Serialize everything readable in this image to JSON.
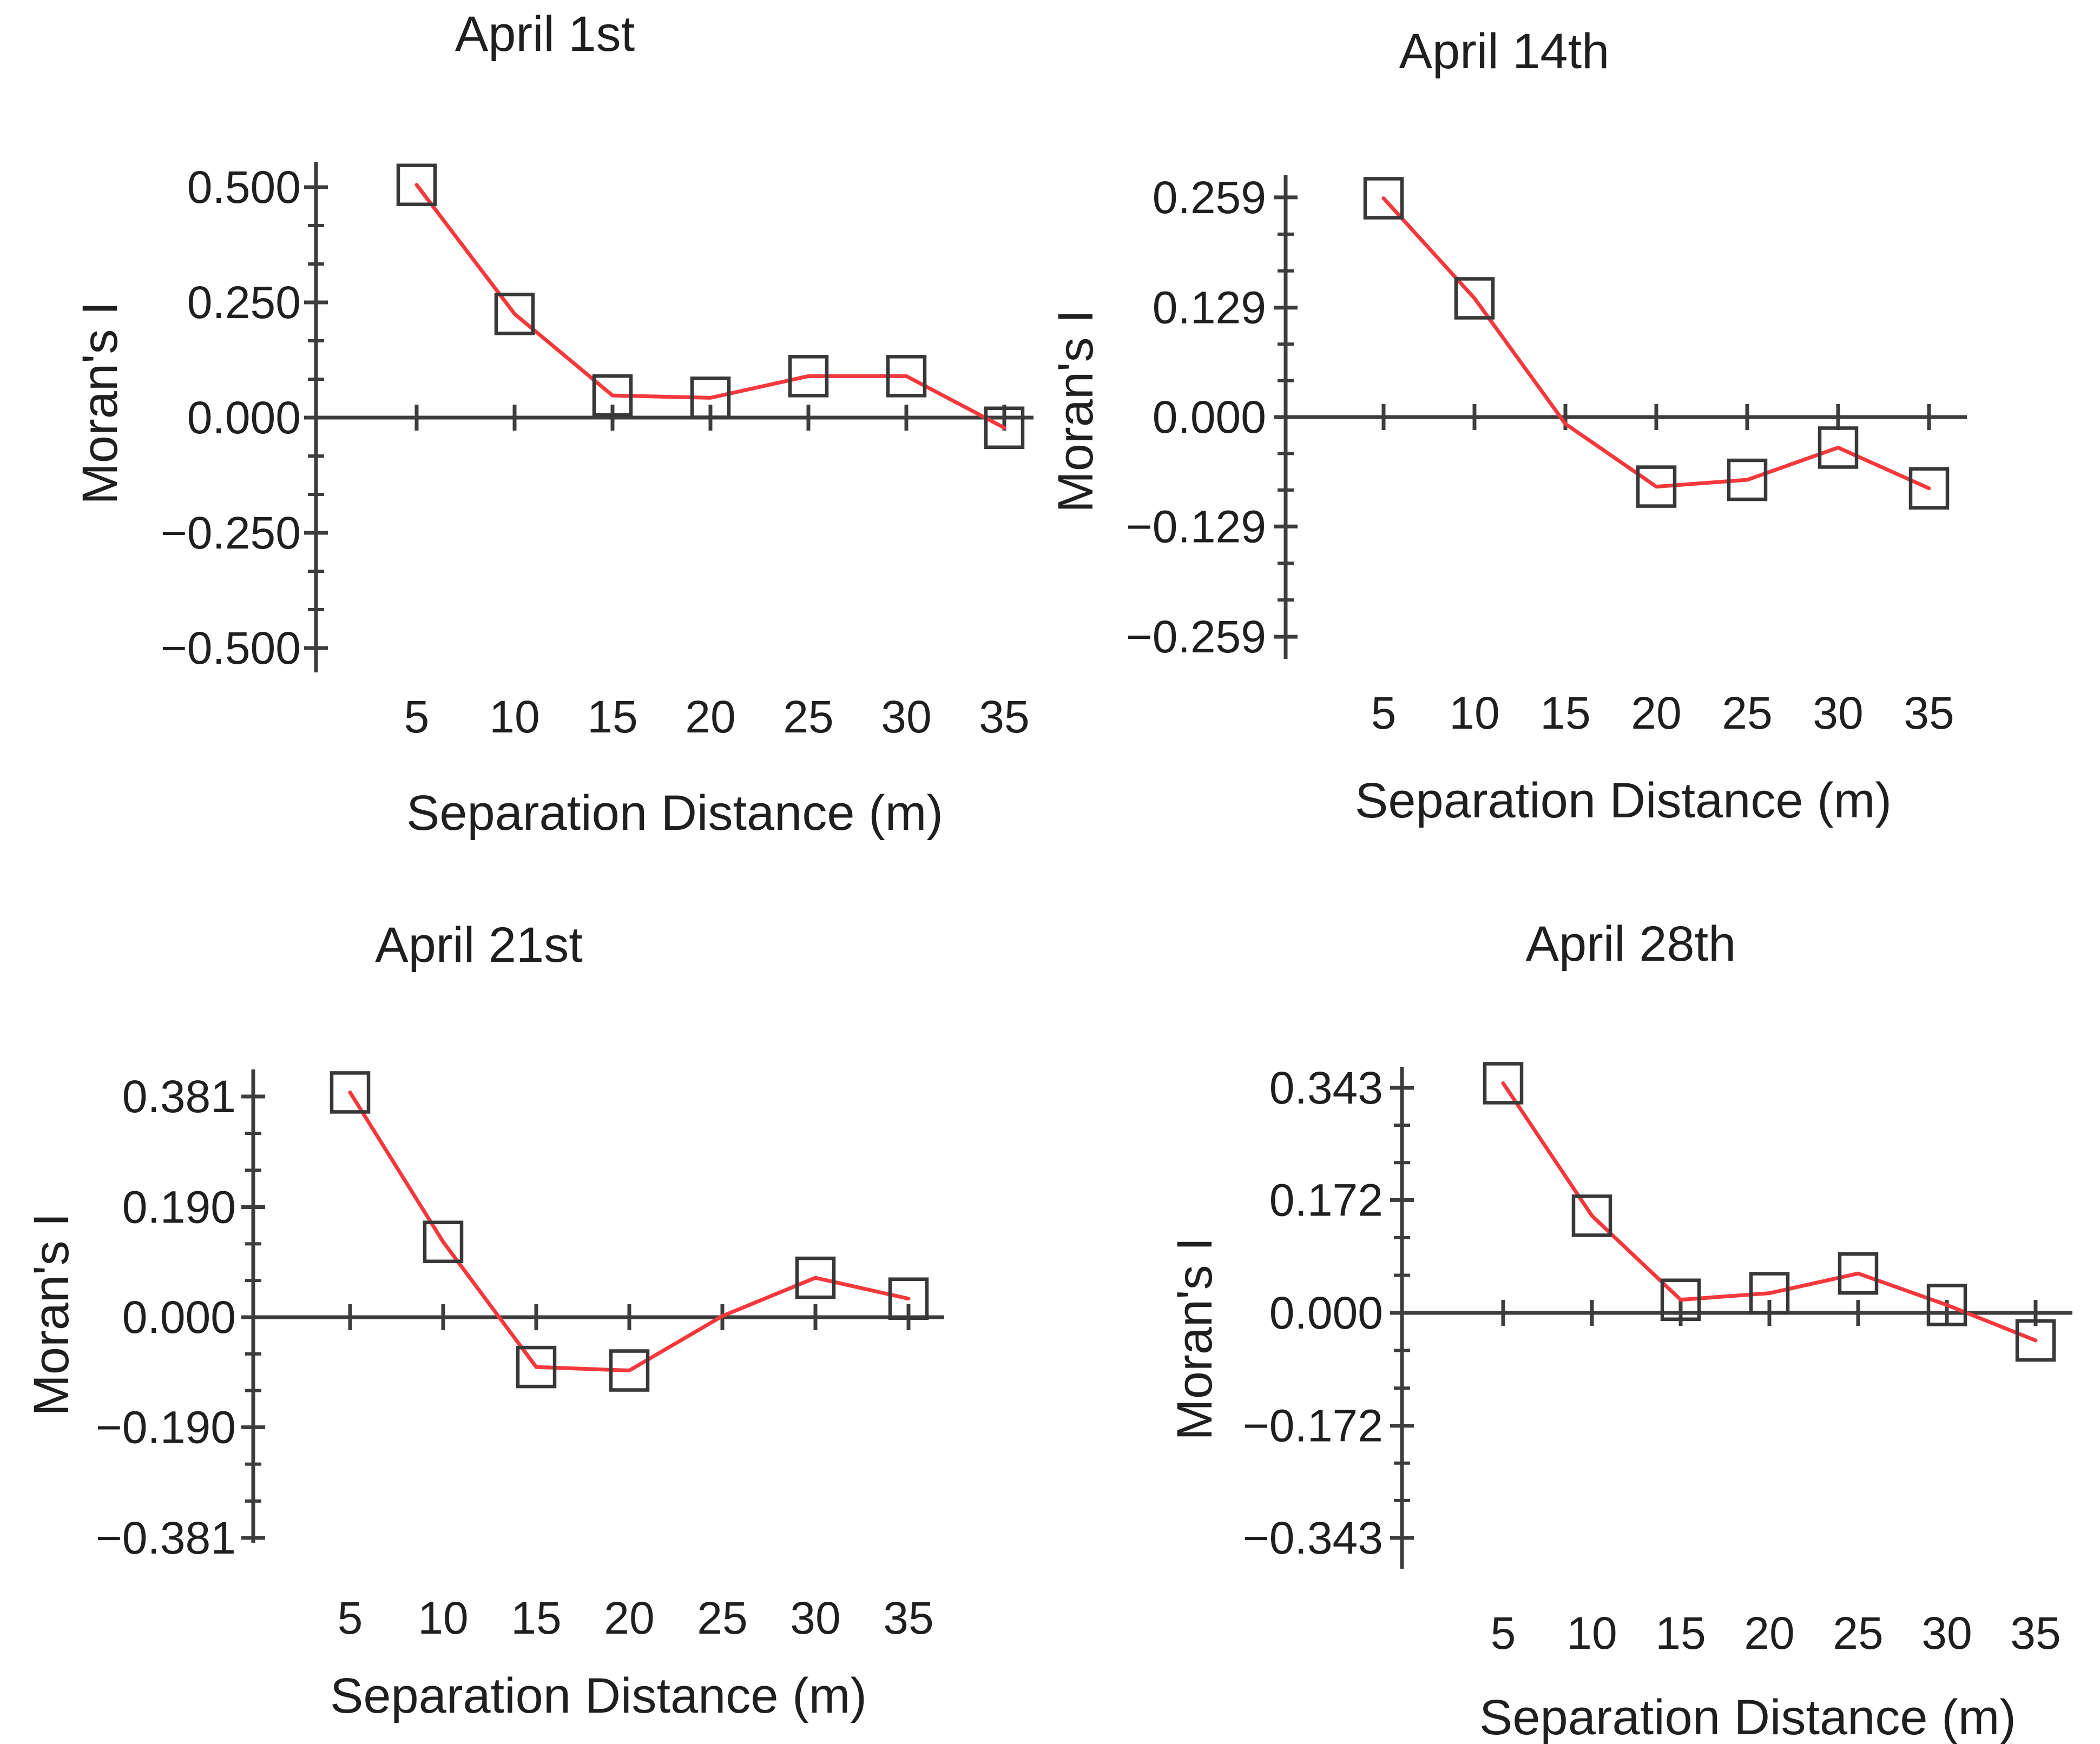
{
  "page": {
    "background": "#ffffff",
    "description_colors": {
      "series_line": "#f4383c",
      "marker_outline": "#383838",
      "axis": "#3d3d3d",
      "text": "#1f1f1f"
    }
  },
  "chart_data": [
    {
      "type": "line",
      "title": "April 1st",
      "xlabel": "Separation Distance (m)",
      "ylabel": "Moran's I",
      "legend_position": "none",
      "grid": false,
      "xlim": [
        0,
        37
      ],
      "ylim": [
        -0.553,
        0.555
      ],
      "x_ticks": [
        {
          "label": "5",
          "value": 5
        },
        {
          "label": "10",
          "value": 10
        },
        {
          "label": "15",
          "value": 15
        },
        {
          "label": "20",
          "value": 20
        },
        {
          "label": "25",
          "value": 25
        },
        {
          "label": "30",
          "value": 30
        },
        {
          "label": "35",
          "value": 35
        }
      ],
      "y_ticks": [
        {
          "label": "0.500",
          "value": 0.5
        },
        {
          "label": "0.250",
          "value": 0.25
        },
        {
          "label": "0.000",
          "value": 0.0
        },
        {
          "label": "−0.250",
          "value": -0.25
        },
        {
          "label": "−0.500",
          "value": -0.5
        }
      ],
      "minor_ticks_between_majors": 2,
      "points": [
        {
          "x": 5,
          "y": 0.505,
          "marker": true
        },
        {
          "x": 10,
          "y": 0.225,
          "marker": true
        },
        {
          "x": 15,
          "y": 0.048,
          "marker": true
        },
        {
          "x": 20,
          "y": 0.043,
          "marker": true
        },
        {
          "x": 25,
          "y": 0.09,
          "marker": true
        },
        {
          "x": 30,
          "y": 0.09,
          "marker": true
        },
        {
          "x": 35,
          "y": -0.022,
          "marker": true
        }
      ]
    },
    {
      "type": "line",
      "title": "April 14th",
      "xlabel": "Separation Distance (m)",
      "ylabel": "Moran's I",
      "legend_position": "none",
      "grid": false,
      "xlim": [
        0,
        37
      ],
      "ylim": [
        -0.285,
        0.285
      ],
      "x_ticks": [
        {
          "label": "5",
          "value": 5
        },
        {
          "label": "10",
          "value": 10
        },
        {
          "label": "15",
          "value": 15
        },
        {
          "label": "20",
          "value": 20
        },
        {
          "label": "25",
          "value": 25
        },
        {
          "label": "30",
          "value": 30
        },
        {
          "label": "35",
          "value": 35
        }
      ],
      "y_ticks": [
        {
          "label": "0.259",
          "value": 0.259
        },
        {
          "label": "0.129",
          "value": 0.129
        },
        {
          "label": "0.000",
          "value": 0.0
        },
        {
          "label": "−0.129",
          "value": -0.129
        },
        {
          "label": "−0.259",
          "value": -0.259
        }
      ],
      "minor_ticks_between_majors": 2,
      "points": [
        {
          "x": 5,
          "y": 0.258,
          "marker": true
        },
        {
          "x": 10,
          "y": 0.14,
          "marker": true
        },
        {
          "x": 15,
          "y": -0.008,
          "marker": false
        },
        {
          "x": 20,
          "y": -0.082,
          "marker": true
        },
        {
          "x": 25,
          "y": -0.074,
          "marker": true
        },
        {
          "x": 30,
          "y": -0.036,
          "marker": true
        },
        {
          "x": 35,
          "y": -0.084,
          "marker": true
        }
      ]
    },
    {
      "type": "line",
      "title": "April 21st",
      "xlabel": "Separation Distance (m)",
      "ylabel": "Moran's I",
      "legend_position": "none",
      "grid": false,
      "xlim": [
        0,
        37
      ],
      "ylim": [
        -0.39,
        0.428
      ],
      "x_ticks": [
        {
          "label": "5",
          "value": 5
        },
        {
          "label": "10",
          "value": 10
        },
        {
          "label": "15",
          "value": 15
        },
        {
          "label": "20",
          "value": 20
        },
        {
          "label": "25",
          "value": 25
        },
        {
          "label": "30",
          "value": 30
        },
        {
          "label": "35",
          "value": 35
        }
      ],
      "y_ticks": [
        {
          "label": "0.381",
          "value": 0.381
        },
        {
          "label": "0.190",
          "value": 0.19
        },
        {
          "label": "0.000",
          "value": 0.0
        },
        {
          "label": "−0.190",
          "value": -0.19
        },
        {
          "label": "−0.381",
          "value": -0.381
        }
      ],
      "minor_ticks_between_majors": 2,
      "points": [
        {
          "x": 5,
          "y": 0.388,
          "marker": true
        },
        {
          "x": 10,
          "y": 0.13,
          "marker": true
        },
        {
          "x": 15,
          "y": -0.086,
          "marker": true
        },
        {
          "x": 20,
          "y": -0.092,
          "marker": true
        },
        {
          "x": 25,
          "y": 0.002,
          "marker": false
        },
        {
          "x": 30,
          "y": 0.068,
          "marker": true
        },
        {
          "x": 35,
          "y": 0.032,
          "marker": true
        }
      ]
    },
    {
      "type": "line",
      "title": "April 28th",
      "xlabel": "Separation Distance (m)",
      "ylabel": "Moran's I",
      "legend_position": "none",
      "grid": false,
      "xlim": [
        0,
        37
      ],
      "ylim": [
        -0.39,
        0.375
      ],
      "x_ticks": [
        {
          "label": "5",
          "value": 5
        },
        {
          "label": "10",
          "value": 10
        },
        {
          "label": "15",
          "value": 15
        },
        {
          "label": "20",
          "value": 20
        },
        {
          "label": "25",
          "value": 25
        },
        {
          "label": "30",
          "value": 30
        },
        {
          "label": "35",
          "value": 35
        }
      ],
      "y_ticks": [
        {
          "label": "0.343",
          "value": 0.343
        },
        {
          "label": "0.172",
          "value": 0.172
        },
        {
          "label": "0.000",
          "value": 0.0
        },
        {
          "label": "−0.172",
          "value": -0.172
        },
        {
          "label": "−0.343",
          "value": -0.343
        }
      ],
      "minor_ticks_between_majors": 2,
      "points": [
        {
          "x": 5,
          "y": 0.35,
          "marker": true
        },
        {
          "x": 10,
          "y": 0.148,
          "marker": true
        },
        {
          "x": 15,
          "y": 0.02,
          "marker": true
        },
        {
          "x": 20,
          "y": 0.03,
          "marker": true
        },
        {
          "x": 25,
          "y": 0.06,
          "marker": true
        },
        {
          "x": 30,
          "y": 0.012,
          "marker": true
        },
        {
          "x": 35,
          "y": -0.042,
          "marker": true
        }
      ]
    }
  ]
}
